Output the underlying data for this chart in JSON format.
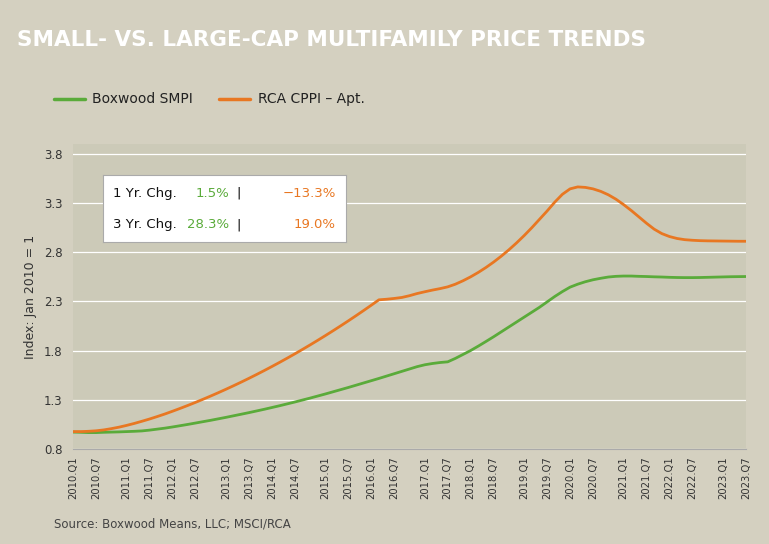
{
  "title": "SMALL- VS. LARGE-CAP MULTIFAMILY PRICE TRENDS",
  "title_bg": "#636363",
  "title_color": "#ffffff",
  "bg_color": "#d4d0c0",
  "plot_bg": "#cccab8",
  "ylabel": "Index: Jan 2010 = 1",
  "source": "Source: Boxwood Means, LLC; MSCI/RCA",
  "legend_items": [
    "Boxwood SMPI",
    "RCA CPPI – Apt."
  ],
  "green_color": "#5aab3a",
  "orange_color": "#e87722",
  "ylim": [
    0.8,
    3.9
  ],
  "yticks": [
    0.8,
    1.3,
    1.8,
    2.3,
    2.8,
    3.3,
    3.8
  ],
  "annotation_box": {
    "line1_label": "1 Yr. Chg.",
    "line1_green": "1.5%",
    "line1_sep": "|",
    "line1_orange": "−13.3%",
    "line2_label": "3 Yr. Chg.",
    "line2_green": "28.3%",
    "line2_sep": "|",
    "line2_orange": "19.0%"
  },
  "smpi_vals": [
    0.97,
    0.968,
    0.965,
    0.965,
    0.968,
    0.97,
    0.972,
    0.975,
    0.978,
    0.982,
    0.99,
    1.0,
    1.01,
    1.022,
    1.035,
    1.048,
    1.062,
    1.076,
    1.09,
    1.105,
    1.12,
    1.136,
    1.152,
    1.168,
    1.185,
    1.202,
    1.22,
    1.238,
    1.257,
    1.276,
    1.296,
    1.316,
    1.337,
    1.358,
    1.38,
    1.402,
    1.424,
    1.447,
    1.47,
    1.493,
    1.516,
    1.54,
    1.564,
    1.588,
    1.612,
    1.636,
    1.655,
    1.668,
    1.678,
    1.685,
    1.72,
    1.76,
    1.8,
    1.845,
    1.892,
    1.94,
    1.99,
    2.04,
    2.09,
    2.14,
    2.19,
    2.24,
    2.295,
    2.35,
    2.4,
    2.445,
    2.475,
    2.5,
    2.52,
    2.535,
    2.548,
    2.555,
    2.558,
    2.558,
    2.555,
    2.553,
    2.55,
    2.548,
    2.545,
    2.543,
    2.542,
    2.542,
    2.543,
    2.545,
    2.547,
    2.549,
    2.551,
    2.552,
    2.553
  ],
  "rca_vals": [
    0.975,
    0.975,
    0.978,
    0.983,
    0.992,
    1.005,
    1.02,
    1.038,
    1.058,
    1.08,
    1.103,
    1.128,
    1.154,
    1.182,
    1.211,
    1.241,
    1.272,
    1.304,
    1.337,
    1.371,
    1.406,
    1.442,
    1.479,
    1.517,
    1.556,
    1.596,
    1.637,
    1.679,
    1.722,
    1.766,
    1.811,
    1.857,
    1.904,
    1.952,
    2.001,
    2.051,
    2.102,
    2.154,
    2.207,
    2.261,
    2.316,
    2.322,
    2.33,
    2.34,
    2.358,
    2.38,
    2.398,
    2.415,
    2.43,
    2.448,
    2.475,
    2.51,
    2.55,
    2.595,
    2.645,
    2.7,
    2.76,
    2.825,
    2.895,
    2.97,
    3.05,
    3.135,
    3.22,
    3.31,
    3.39,
    3.445,
    3.465,
    3.46,
    3.445,
    3.42,
    3.385,
    3.34,
    3.285,
    3.225,
    3.16,
    3.095,
    3.035,
    2.99,
    2.96,
    2.94,
    2.928,
    2.922,
    2.918,
    2.916,
    2.915,
    2.914,
    2.913,
    2.912,
    2.912
  ],
  "xtick_labels": [
    "2010.Q1",
    "2010.Q7",
    "2011.Q1",
    "2011.Q7",
    "2012.Q1",
    "2012.Q7",
    "2013.Q1",
    "2013.Q7",
    "2014.Q1",
    "2014.Q7",
    "2015.Q1",
    "2015.Q7",
    "2016.Q1",
    "2016.Q7",
    "2017.Q1",
    "2017.Q7",
    "2018.Q1",
    "2018.Q7",
    "2019.Q1",
    "2019.Q7",
    "2020.Q1",
    "2020.Q7",
    "2021.Q1",
    "2021.Q7",
    "2022.Q1",
    "2022.Q7",
    "2023.Q1",
    "2023.Q7"
  ]
}
